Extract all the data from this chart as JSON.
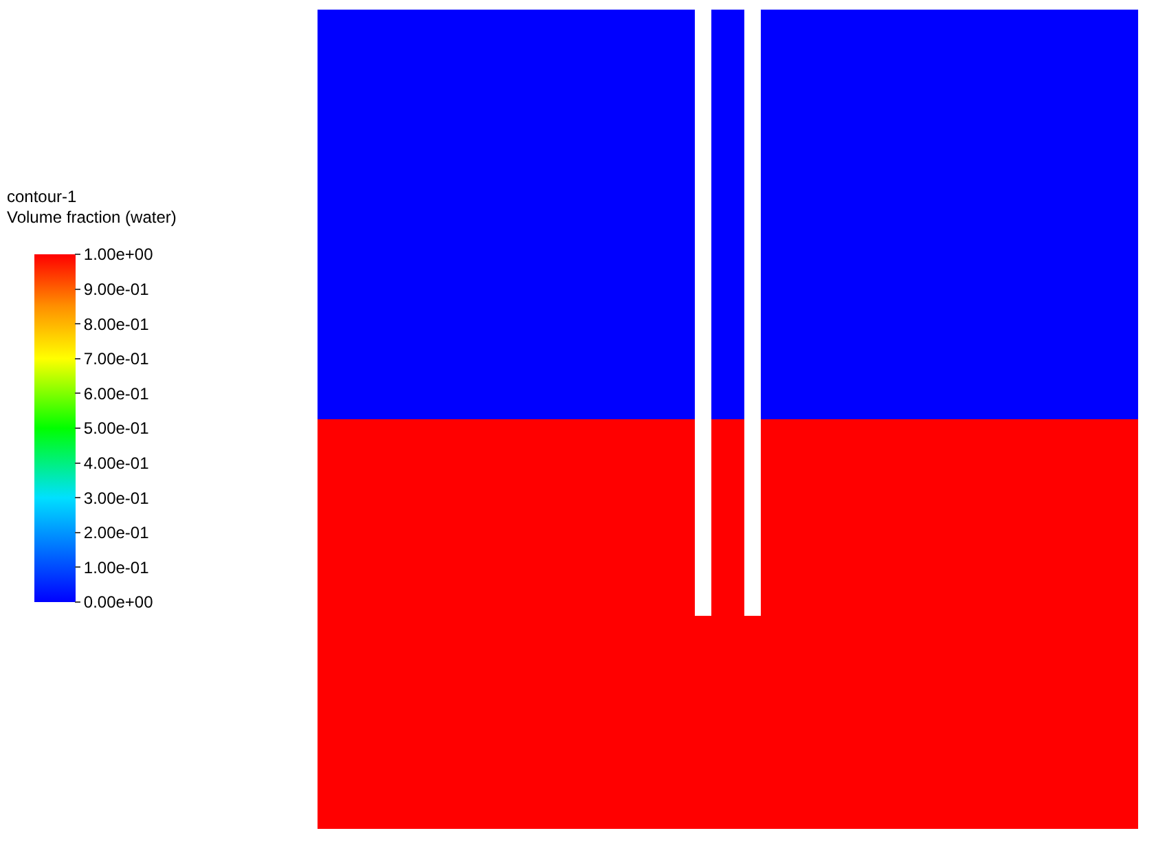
{
  "chart_data": {
    "type": "heatmap",
    "title": "contour-1",
    "clabel": "Volume fraction (water)",
    "categories": [
      null,
      null,
      null,
      null,
      null,
      null,
      null,
      null,
      null,
      null,
      null,
      null,
      null,
      null,
      null,
      null,
      null,
      null,
      null,
      null,
      null,
      null,
      null,
      null,
      null,
      null,
      null,
      null,
      null,
      null,
      null,
      null,
      null,
      null,
      null,
      null,
      null,
      null,
      null,
      null,
      null,
      null,
      null,
      null,
      null,
      null,
      null,
      null,
      null,
      null
    ],
    "y_categories": [
      null,
      null,
      null,
      null,
      null,
      null,
      null,
      null,
      null,
      null,
      null,
      null,
      null,
      null,
      null,
      null,
      null,
      null,
      null,
      null,
      null,
      null,
      null,
      null,
      null,
      null,
      null,
      null,
      null,
      null,
      null,
      null,
      null,
      null,
      null,
      null,
      null,
      null,
      null,
      null,
      null,
      null,
      null,
      null,
      null,
      null,
      null,
      null,
      null,
      null
    ],
    "cells": [
      [
        0,
        0,
        0,
        0,
        0,
        0,
        0,
        0,
        0,
        0,
        0,
        0,
        0,
        0,
        0,
        0,
        0,
        0,
        0,
        0,
        0,
        0,
        0,
        null,
        0,
        0,
        null,
        0,
        0,
        0,
        0,
        0,
        0,
        0,
        0,
        0,
        0,
        0,
        0,
        0,
        0,
        0,
        0,
        0,
        0,
        0,
        0,
        0,
        0,
        0
      ],
      [
        0,
        0,
        0,
        0,
        0,
        0,
        0,
        0,
        0,
        0,
        0,
        0,
        0,
        0,
        0,
        0,
        0,
        0,
        0,
        0,
        0,
        0,
        0,
        null,
        0,
        0,
        null,
        0,
        0,
        0,
        0,
        0,
        0,
        0,
        0,
        0,
        0,
        0,
        0,
        0,
        0,
        0,
        0,
        0,
        0,
        0,
        0,
        0,
        0,
        0
      ],
      [
        0,
        0,
        0,
        0,
        0,
        0,
        0,
        0,
        0,
        0,
        0,
        0,
        0,
        0,
        0,
        0,
        0,
        0,
        0,
        0,
        0,
        0,
        0,
        null,
        0,
        0,
        null,
        0,
        0,
        0,
        0,
        0,
        0,
        0,
        0,
        0,
        0,
        0,
        0,
        0,
        0,
        0,
        0,
        0,
        0,
        0,
        0,
        0,
        0,
        0
      ],
      [
        0,
        0,
        0,
        0,
        0,
        0,
        0,
        0,
        0,
        0,
        0,
        0,
        0,
        0,
        0,
        0,
        0,
        0,
        0,
        0,
        0,
        0,
        0,
        null,
        0,
        0,
        null,
        0,
        0,
        0,
        0,
        0,
        0,
        0,
        0,
        0,
        0,
        0,
        0,
        0,
        0,
        0,
        0,
        0,
        0,
        0,
        0,
        0,
        0,
        0
      ],
      [
        0,
        0,
        0,
        0,
        0,
        0,
        0,
        0,
        0,
        0,
        0,
        0,
        0,
        0,
        0,
        0,
        0,
        0,
        0,
        0,
        0,
        0,
        0,
        null,
        0,
        0,
        null,
        0,
        0,
        0,
        0,
        0,
        0,
        0,
        0,
        0,
        0,
        0,
        0,
        0,
        0,
        0,
        0,
        0,
        0,
        0,
        0,
        0,
        0,
        0
      ],
      [
        0,
        0,
        0,
        0,
        0,
        0,
        0,
        0,
        0,
        0,
        0,
        0,
        0,
        0,
        0,
        0,
        0,
        0,
        0,
        0,
        0,
        0,
        0,
        null,
        0,
        0,
        null,
        0,
        0,
        0,
        0,
        0,
        0,
        0,
        0,
        0,
        0,
        0,
        0,
        0,
        0,
        0,
        0,
        0,
        0,
        0,
        0,
        0,
        0,
        0
      ],
      [
        0,
        0,
        0,
        0,
        0,
        0,
        0,
        0,
        0,
        0,
        0,
        0,
        0,
        0,
        0,
        0,
        0,
        0,
        0,
        0,
        0,
        0,
        0,
        null,
        0,
        0,
        null,
        0,
        0,
        0,
        0,
        0,
        0,
        0,
        0,
        0,
        0,
        0,
        0,
        0,
        0,
        0,
        0,
        0,
        0,
        0,
        0,
        0,
        0,
        0
      ],
      [
        0,
        0,
        0,
        0,
        0,
        0,
        0,
        0,
        0,
        0,
        0,
        0,
        0,
        0,
        0,
        0,
        0,
        0,
        0,
        0,
        0,
        0,
        0,
        null,
        0,
        0,
        null,
        0,
        0,
        0,
        0,
        0,
        0,
        0,
        0,
        0,
        0,
        0,
        0,
        0,
        0,
        0,
        0,
        0,
        0,
        0,
        0,
        0,
        0,
        0
      ],
      [
        0,
        0,
        0,
        0,
        0,
        0,
        0,
        0,
        0,
        0,
        0,
        0,
        0,
        0,
        0,
        0,
        0,
        0,
        0,
        0,
        0,
        0,
        0,
        null,
        0,
        0,
        null,
        0,
        0,
        0,
        0,
        0,
        0,
        0,
        0,
        0,
        0,
        0,
        0,
        0,
        0,
        0,
        0,
        0,
        0,
        0,
        0,
        0,
        0,
        0
      ],
      [
        0,
        0,
        0,
        0,
        0,
        0,
        0,
        0,
        0,
        0,
        0,
        0,
        0,
        0,
        0,
        0,
        0,
        0,
        0,
        0,
        0,
        0,
        0,
        null,
        0,
        0,
        null,
        0,
        0,
        0,
        0,
        0,
        0,
        0,
        0,
        0,
        0,
        0,
        0,
        0,
        0,
        0,
        0,
        0,
        0,
        0,
        0,
        0,
        0,
        0
      ],
      [
        0,
        0,
        0,
        0,
        0,
        0,
        0,
        0,
        0,
        0,
        0,
        0,
        0,
        0,
        0,
        0,
        0,
        0,
        0,
        0,
        0,
        0,
        0,
        null,
        0,
        0,
        null,
        0,
        0,
        0,
        0,
        0,
        0,
        0,
        0,
        0,
        0,
        0,
        0,
        0,
        0,
        0,
        0,
        0,
        0,
        0,
        0,
        0,
        0,
        0
      ],
      [
        0,
        0,
        0,
        0,
        0,
        0,
        0,
        0,
        0,
        0,
        0,
        0,
        0,
        0,
        0,
        0,
        0,
        0,
        0,
        0,
        0,
        0,
        0,
        null,
        0,
        0,
        null,
        0,
        0,
        0,
        0,
        0,
        0,
        0,
        0,
        0,
        0,
        0,
        0,
        0,
        0,
        0,
        0,
        0,
        0,
        0,
        0,
        0,
        0,
        0
      ],
      [
        0,
        0,
        0,
        0,
        0,
        0,
        0,
        0,
        0,
        0,
        0,
        0,
        0,
        0,
        0,
        0,
        0,
        0,
        0,
        0,
        0,
        0,
        0,
        null,
        0,
        0,
        null,
        0,
        0,
        0,
        0,
        0,
        0,
        0,
        0,
        0,
        0,
        0,
        0,
        0,
        0,
        0,
        0,
        0,
        0,
        0,
        0,
        0,
        0,
        0
      ],
      [
        0,
        0,
        0,
        0,
        0,
        0,
        0,
        0,
        0,
        0,
        0,
        0,
        0,
        0,
        0,
        0,
        0,
        0,
        0,
        0,
        0,
        0,
        0,
        null,
        0,
        0,
        null,
        0,
        0,
        0,
        0,
        0,
        0,
        0,
        0,
        0,
        0,
        0,
        0,
        0,
        0,
        0,
        0,
        0,
        0,
        0,
        0,
        0,
        0,
        0
      ],
      [
        0,
        0,
        0,
        0,
        0,
        0,
        0,
        0,
        0,
        0,
        0,
        0,
        0,
        0,
        0,
        0,
        0,
        0,
        0,
        0,
        0,
        0,
        0,
        null,
        0,
        0,
        null,
        0,
        0,
        0,
        0,
        0,
        0,
        0,
        0,
        0,
        0,
        0,
        0,
        0,
        0,
        0,
        0,
        0,
        0,
        0,
        0,
        0,
        0,
        0
      ],
      [
        0,
        0,
        0,
        0,
        0,
        0,
        0,
        0,
        0,
        0,
        0,
        0,
        0,
        0,
        0,
        0,
        0,
        0,
        0,
        0,
        0,
        0,
        0,
        null,
        0,
        0,
        null,
        0,
        0,
        0,
        0,
        0,
        0,
        0,
        0,
        0,
        0,
        0,
        0,
        0,
        0,
        0,
        0,
        0,
        0,
        0,
        0,
        0,
        0,
        0
      ],
      [
        0,
        0,
        0,
        0,
        0,
        0,
        0,
        0,
        0,
        0,
        0,
        0,
        0,
        0,
        0,
        0,
        0,
        0,
        0,
        0,
        0,
        0,
        0,
        null,
        0,
        0,
        null,
        0,
        0,
        0,
        0,
        0,
        0,
        0,
        0,
        0,
        0,
        0,
        0,
        0,
        0,
        0,
        0,
        0,
        0,
        0,
        0,
        0,
        0,
        0
      ],
      [
        0,
        0,
        0,
        0,
        0,
        0,
        0,
        0,
        0,
        0,
        0,
        0,
        0,
        0,
        0,
        0,
        0,
        0,
        0,
        0,
        0,
        0,
        0,
        null,
        0,
        0,
        null,
        0,
        0,
        0,
        0,
        0,
        0,
        0,
        0,
        0,
        0,
        0,
        0,
        0,
        0,
        0,
        0,
        0,
        0,
        0,
        0,
        0,
        0,
        0
      ],
      [
        0,
        0,
        0,
        0,
        0,
        0,
        0,
        0,
        0,
        0,
        0,
        0,
        0,
        0,
        0,
        0,
        0,
        0,
        0,
        0,
        0,
        0,
        0,
        null,
        0,
        0,
        null,
        0,
        0,
        0,
        0,
        0,
        0,
        0,
        0,
        0,
        0,
        0,
        0,
        0,
        0,
        0,
        0,
        0,
        0,
        0,
        0,
        0,
        0,
        0
      ],
      [
        0,
        0,
        0,
        0,
        0,
        0,
        0,
        0,
        0,
        0,
        0,
        0,
        0,
        0,
        0,
        0,
        0,
        0,
        0,
        0,
        0,
        0,
        0,
        null,
        0,
        0,
        null,
        0,
        0,
        0,
        0,
        0,
        0,
        0,
        0,
        0,
        0,
        0,
        0,
        0,
        0,
        0,
        0,
        0,
        0,
        0,
        0,
        0,
        0,
        0
      ],
      [
        0,
        0,
        0,
        0,
        0,
        0,
        0,
        0,
        0,
        0,
        0,
        0,
        0,
        0,
        0,
        0,
        0,
        0,
        0,
        0,
        0,
        0,
        0,
        null,
        0,
        0,
        null,
        0,
        0,
        0,
        0,
        0,
        0,
        0,
        0,
        0,
        0,
        0,
        0,
        0,
        0,
        0,
        0,
        0,
        0,
        0,
        0,
        0,
        0,
        0
      ],
      [
        0,
        0,
        0,
        0,
        0,
        0,
        0,
        0,
        0,
        0,
        0,
        0,
        0,
        0,
        0,
        0,
        0,
        0,
        0,
        0,
        0,
        0,
        0,
        null,
        0,
        0,
        null,
        0,
        0,
        0,
        0,
        0,
        0,
        0,
        0,
        0,
        0,
        0,
        0,
        0,
        0,
        0,
        0,
        0,
        0,
        0,
        0,
        0,
        0,
        0
      ],
      [
        0,
        0,
        0,
        0,
        0,
        0,
        0,
        0,
        0,
        0,
        0,
        0,
        0,
        0,
        0,
        0,
        0,
        0,
        0,
        0,
        0,
        0,
        0,
        null,
        0,
        0,
        null,
        0,
        0,
        0,
        0,
        0,
        0,
        0,
        0,
        0,
        0,
        0,
        0,
        0,
        0,
        0,
        0,
        0,
        0,
        0,
        0,
        0,
        0,
        0
      ],
      [
        0,
        0,
        0,
        0,
        0,
        0,
        0,
        0,
        0,
        0,
        0,
        0,
        0,
        0,
        0,
        0,
        0,
        0,
        0,
        0,
        0,
        0,
        0,
        null,
        0,
        0,
        null,
        0,
        0,
        0,
        0,
        0,
        0,
        0,
        0,
        0,
        0,
        0,
        0,
        0,
        0,
        0,
        0,
        0,
        0,
        0,
        0,
        0,
        0,
        0
      ],
      [
        0,
        0,
        0,
        0,
        0,
        0,
        0,
        0,
        0,
        0,
        0,
        0,
        0,
        0,
        0,
        0,
        0,
        0,
        0,
        0,
        0,
        0,
        0,
        null,
        0,
        0,
        null,
        0,
        0,
        0,
        0,
        0,
        0,
        0,
        0,
        0,
        0,
        0,
        0,
        0,
        0,
        0,
        0,
        0,
        0,
        0,
        0,
        0,
        0,
        0
      ],
      [
        1,
        1,
        1,
        1,
        1,
        1,
        1,
        1,
        1,
        1,
        1,
        1,
        1,
        1,
        1,
        1,
        1,
        1,
        1,
        1,
        1,
        1,
        1,
        null,
        1,
        1,
        null,
        1,
        1,
        1,
        1,
        1,
        1,
        1,
        1,
        1,
        1,
        1,
        1,
        1,
        1,
        1,
        1,
        1,
        1,
        1,
        1,
        1,
        1,
        1
      ],
      [
        1,
        1,
        1,
        1,
        1,
        1,
        1,
        1,
        1,
        1,
        1,
        1,
        1,
        1,
        1,
        1,
        1,
        1,
        1,
        1,
        1,
        1,
        1,
        null,
        1,
        1,
        null,
        1,
        1,
        1,
        1,
        1,
        1,
        1,
        1,
        1,
        1,
        1,
        1,
        1,
        1,
        1,
        1,
        1,
        1,
        1,
        1,
        1,
        1,
        1
      ],
      [
        1,
        1,
        1,
        1,
        1,
        1,
        1,
        1,
        1,
        1,
        1,
        1,
        1,
        1,
        1,
        1,
        1,
        1,
        1,
        1,
        1,
        1,
        1,
        null,
        1,
        1,
        null,
        1,
        1,
        1,
        1,
        1,
        1,
        1,
        1,
        1,
        1,
        1,
        1,
        1,
        1,
        1,
        1,
        1,
        1,
        1,
        1,
        1,
        1,
        1
      ],
      [
        1,
        1,
        1,
        1,
        1,
        1,
        1,
        1,
        1,
        1,
        1,
        1,
        1,
        1,
        1,
        1,
        1,
        1,
        1,
        1,
        1,
        1,
        1,
        null,
        1,
        1,
        null,
        1,
        1,
        1,
        1,
        1,
        1,
        1,
        1,
        1,
        1,
        1,
        1,
        1,
        1,
        1,
        1,
        1,
        1,
        1,
        1,
        1,
        1,
        1
      ],
      [
        1,
        1,
        1,
        1,
        1,
        1,
        1,
        1,
        1,
        1,
        1,
        1,
        1,
        1,
        1,
        1,
        1,
        1,
        1,
        1,
        1,
        1,
        1,
        null,
        1,
        1,
        null,
        1,
        1,
        1,
        1,
        1,
        1,
        1,
        1,
        1,
        1,
        1,
        1,
        1,
        1,
        1,
        1,
        1,
        1,
        1,
        1,
        1,
        1,
        1
      ],
      [
        1,
        1,
        1,
        1,
        1,
        1,
        1,
        1,
        1,
        1,
        1,
        1,
        1,
        1,
        1,
        1,
        1,
        1,
        1,
        1,
        1,
        1,
        1,
        null,
        1,
        1,
        null,
        1,
        1,
        1,
        1,
        1,
        1,
        1,
        1,
        1,
        1,
        1,
        1,
        1,
        1,
        1,
        1,
        1,
        1,
        1,
        1,
        1,
        1,
        1
      ],
      [
        1,
        1,
        1,
        1,
        1,
        1,
        1,
        1,
        1,
        1,
        1,
        1,
        1,
        1,
        1,
        1,
        1,
        1,
        1,
        1,
        1,
        1,
        1,
        null,
        1,
        1,
        null,
        1,
        1,
        1,
        1,
        1,
        1,
        1,
        1,
        1,
        1,
        1,
        1,
        1,
        1,
        1,
        1,
        1,
        1,
        1,
        1,
        1,
        1,
        1
      ],
      [
        1,
        1,
        1,
        1,
        1,
        1,
        1,
        1,
        1,
        1,
        1,
        1,
        1,
        1,
        1,
        1,
        1,
        1,
        1,
        1,
        1,
        1,
        1,
        null,
        1,
        1,
        null,
        1,
        1,
        1,
        1,
        1,
        1,
        1,
        1,
        1,
        1,
        1,
        1,
        1,
        1,
        1,
        1,
        1,
        1,
        1,
        1,
        1,
        1,
        1
      ],
      [
        1,
        1,
        1,
        1,
        1,
        1,
        1,
        1,
        1,
        1,
        1,
        1,
        1,
        1,
        1,
        1,
        1,
        1,
        1,
        1,
        1,
        1,
        1,
        null,
        1,
        1,
        null,
        1,
        1,
        1,
        1,
        1,
        1,
        1,
        1,
        1,
        1,
        1,
        1,
        1,
        1,
        1,
        1,
        1,
        1,
        1,
        1,
        1,
        1,
        1
      ],
      [
        1,
        1,
        1,
        1,
        1,
        1,
        1,
        1,
        1,
        1,
        1,
        1,
        1,
        1,
        1,
        1,
        1,
        1,
        1,
        1,
        1,
        1,
        1,
        null,
        1,
        1,
        null,
        1,
        1,
        1,
        1,
        1,
        1,
        1,
        1,
        1,
        1,
        1,
        1,
        1,
        1,
        1,
        1,
        1,
        1,
        1,
        1,
        1,
        1,
        1
      ],
      [
        1,
        1,
        1,
        1,
        1,
        1,
        1,
        1,
        1,
        1,
        1,
        1,
        1,
        1,
        1,
        1,
        1,
        1,
        1,
        1,
        1,
        1,
        1,
        null,
        1,
        1,
        null,
        1,
        1,
        1,
        1,
        1,
        1,
        1,
        1,
        1,
        1,
        1,
        1,
        1,
        1,
        1,
        1,
        1,
        1,
        1,
        1,
        1,
        1,
        1
      ],
      [
        1,
        1,
        1,
        1,
        1,
        1,
        1,
        1,
        1,
        1,
        1,
        1,
        1,
        1,
        1,
        1,
        1,
        1,
        1,
        1,
        1,
        1,
        1,
        null,
        1,
        1,
        null,
        1,
        1,
        1,
        1,
        1,
        1,
        1,
        1,
        1,
        1,
        1,
        1,
        1,
        1,
        1,
        1,
        1,
        1,
        1,
        1,
        1,
        1,
        1
      ],
      [
        1,
        1,
        1,
        1,
        1,
        1,
        1,
        1,
        1,
        1,
        1,
        1,
        1,
        1,
        1,
        1,
        1,
        1,
        1,
        1,
        1,
        1,
        1,
        1,
        1,
        1,
        1,
        1,
        1,
        1,
        1,
        1,
        1,
        1,
        1,
        1,
        1,
        1,
        1,
        1,
        1,
        1,
        1,
        1,
        1,
        1,
        1,
        1,
        1,
        1
      ],
      [
        1,
        1,
        1,
        1,
        1,
        1,
        1,
        1,
        1,
        1,
        1,
        1,
        1,
        1,
        1,
        1,
        1,
        1,
        1,
        1,
        1,
        1,
        1,
        1,
        1,
        1,
        1,
        1,
        1,
        1,
        1,
        1,
        1,
        1,
        1,
        1,
        1,
        1,
        1,
        1,
        1,
        1,
        1,
        1,
        1,
        1,
        1,
        1,
        1,
        1
      ],
      [
        1,
        1,
        1,
        1,
        1,
        1,
        1,
        1,
        1,
        1,
        1,
        1,
        1,
        1,
        1,
        1,
        1,
        1,
        1,
        1,
        1,
        1,
        1,
        1,
        1,
        1,
        1,
        1,
        1,
        1,
        1,
        1,
        1,
        1,
        1,
        1,
        1,
        1,
        1,
        1,
        1,
        1,
        1,
        1,
        1,
        1,
        1,
        1,
        1,
        1
      ],
      [
        1,
        1,
        1,
        1,
        1,
        1,
        1,
        1,
        1,
        1,
        1,
        1,
        1,
        1,
        1,
        1,
        1,
        1,
        1,
        1,
        1,
        1,
        1,
        1,
        1,
        1,
        1,
        1,
        1,
        1,
        1,
        1,
        1,
        1,
        1,
        1,
        1,
        1,
        1,
        1,
        1,
        1,
        1,
        1,
        1,
        1,
        1,
        1,
        1,
        1
      ],
      [
        1,
        1,
        1,
        1,
        1,
        1,
        1,
        1,
        1,
        1,
        1,
        1,
        1,
        1,
        1,
        1,
        1,
        1,
        1,
        1,
        1,
        1,
        1,
        1,
        1,
        1,
        1,
        1,
        1,
        1,
        1,
        1,
        1,
        1,
        1,
        1,
        1,
        1,
        1,
        1,
        1,
        1,
        1,
        1,
        1,
        1,
        1,
        1,
        1,
        1
      ],
      [
        1,
        1,
        1,
        1,
        1,
        1,
        1,
        1,
        1,
        1,
        1,
        1,
        1,
        1,
        1,
        1,
        1,
        1,
        1,
        1,
        1,
        1,
        1,
        1,
        1,
        1,
        1,
        1,
        1,
        1,
        1,
        1,
        1,
        1,
        1,
        1,
        1,
        1,
        1,
        1,
        1,
        1,
        1,
        1,
        1,
        1,
        1,
        1,
        1,
        1
      ],
      [
        1,
        1,
        1,
        1,
        1,
        1,
        1,
        1,
        1,
        1,
        1,
        1,
        1,
        1,
        1,
        1,
        1,
        1,
        1,
        1,
        1,
        1,
        1,
        1,
        1,
        1,
        1,
        1,
        1,
        1,
        1,
        1,
        1,
        1,
        1,
        1,
        1,
        1,
        1,
        1,
        1,
        1,
        1,
        1,
        1,
        1,
        1,
        1,
        1,
        1
      ],
      [
        1,
        1,
        1,
        1,
        1,
        1,
        1,
        1,
        1,
        1,
        1,
        1,
        1,
        1,
        1,
        1,
        1,
        1,
        1,
        1,
        1,
        1,
        1,
        1,
        1,
        1,
        1,
        1,
        1,
        1,
        1,
        1,
        1,
        1,
        1,
        1,
        1,
        1,
        1,
        1,
        1,
        1,
        1,
        1,
        1,
        1,
        1,
        1,
        1,
        1
      ],
      [
        1,
        1,
        1,
        1,
        1,
        1,
        1,
        1,
        1,
        1,
        1,
        1,
        1,
        1,
        1,
        1,
        1,
        1,
        1,
        1,
        1,
        1,
        1,
        1,
        1,
        1,
        1,
        1,
        1,
        1,
        1,
        1,
        1,
        1,
        1,
        1,
        1,
        1,
        1,
        1,
        1,
        1,
        1,
        1,
        1,
        1,
        1,
        1,
        1,
        1
      ],
      [
        1,
        1,
        1,
        1,
        1,
        1,
        1,
        1,
        1,
        1,
        1,
        1,
        1,
        1,
        1,
        1,
        1,
        1,
        1,
        1,
        1,
        1,
        1,
        1,
        1,
        1,
        1,
        1,
        1,
        1,
        1,
        1,
        1,
        1,
        1,
        1,
        1,
        1,
        1,
        1,
        1,
        1,
        1,
        1,
        1,
        1,
        1,
        1,
        1,
        1
      ],
      [
        1,
        1,
        1,
        1,
        1,
        1,
        1,
        1,
        1,
        1,
        1,
        1,
        1,
        1,
        1,
        1,
        1,
        1,
        1,
        1,
        1,
        1,
        1,
        1,
        1,
        1,
        1,
        1,
        1,
        1,
        1,
        1,
        1,
        1,
        1,
        1,
        1,
        1,
        1,
        1,
        1,
        1,
        1,
        1,
        1,
        1,
        1,
        1,
        1,
        1
      ],
      [
        1,
        1,
        1,
        1,
        1,
        1,
        1,
        1,
        1,
        1,
        1,
        1,
        1,
        1,
        1,
        1,
        1,
        1,
        1,
        1,
        1,
        1,
        1,
        1,
        1,
        1,
        1,
        1,
        1,
        1,
        1,
        1,
        1,
        1,
        1,
        1,
        1,
        1,
        1,
        1,
        1,
        1,
        1,
        1,
        1,
        1,
        1,
        1,
        1,
        1
      ],
      [
        1,
        1,
        1,
        1,
        1,
        1,
        1,
        1,
        1,
        1,
        1,
        1,
        1,
        1,
        1,
        1,
        1,
        1,
        1,
        1,
        1,
        1,
        1,
        1,
        1,
        1,
        1,
        1,
        1,
        1,
        1,
        1,
        1,
        1,
        1,
        1,
        1,
        1,
        1,
        1,
        1,
        1,
        1,
        1,
        1,
        1,
        1,
        1,
        1,
        1
      ]
    ],
    "clim": [
      0,
      1
    ],
    "cticks": [
      {
        "value": 0,
        "label": "0.00e+00"
      },
      {
        "value": 0.1,
        "label": "1.00e-01"
      },
      {
        "value": 0.2,
        "label": "2.00e-01"
      },
      {
        "value": 0.3,
        "label": "3.00e-01"
      },
      {
        "value": 0.4,
        "label": "4.00e-01"
      },
      {
        "value": 0.5,
        "label": "5.00e-01"
      },
      {
        "value": 0.6,
        "label": "6.00e-01"
      },
      {
        "value": 0.7,
        "label": "7.00e-01"
      },
      {
        "value": 0.8,
        "label": "8.00e-01"
      },
      {
        "value": 0.9,
        "label": "9.00e-01"
      },
      {
        "value": 1,
        "label": "1.00e+00"
      }
    ],
    "tick_labels": false
  }
}
